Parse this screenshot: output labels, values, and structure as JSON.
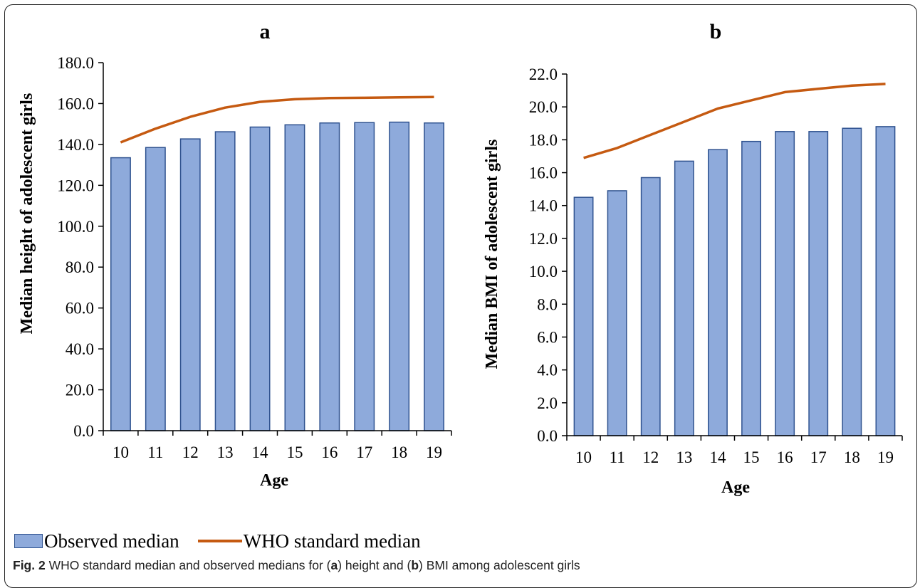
{
  "legend": {
    "observed_label": "Observed median",
    "who_label": "WHO standard median",
    "observed_color": "#8eaadb",
    "observed_edge": "#2f528f",
    "who_color": "#c55a11"
  },
  "caption": {
    "fig_label": "Fig. 2",
    "text1": " WHO standard median and observed medians for (",
    "a": "a",
    "text2": ") height and (",
    "b": "b",
    "text3": ") BMI among adolescent girls"
  },
  "chart_data": [
    {
      "type": "bar",
      "title": "a",
      "xlabel": "Age",
      "ylabel": "Median height of adolescent girls",
      "categories": [
        "10",
        "11",
        "12",
        "13",
        "14",
        "15",
        "16",
        "17",
        "18",
        "19"
      ],
      "ylim": [
        0,
        180
      ],
      "yticks": [
        "0.0",
        "20.0",
        "40.0",
        "60.0",
        "80.0",
        "100.0",
        "120.0",
        "140.0",
        "160.0",
        "180.0"
      ],
      "series": [
        {
          "name": "Observed median",
          "kind": "bar",
          "values": [
            133.5,
            138.5,
            142.7,
            146.2,
            148.5,
            149.6,
            150.5,
            150.7,
            150.9,
            150.5
          ]
        },
        {
          "name": "WHO standard median",
          "kind": "line",
          "values": [
            141.0,
            147.7,
            153.5,
            158.0,
            160.8,
            162.1,
            162.7,
            162.8,
            163.0,
            163.2
          ]
        }
      ]
    },
    {
      "type": "bar",
      "title": "b",
      "xlabel": "Age",
      "ylabel": "Median BMI of adolescent girls",
      "categories": [
        "10",
        "11",
        "12",
        "13",
        "14",
        "15",
        "16",
        "17",
        "18",
        "19"
      ],
      "ylim": [
        0,
        22
      ],
      "yticks": [
        "0.0",
        "2.0",
        "4.0",
        "6.0",
        "8.0",
        "10.0",
        "12.0",
        "14.0",
        "16.0",
        "18.0",
        "20.0",
        "22.0"
      ],
      "series": [
        {
          "name": "Observed median",
          "kind": "bar",
          "values": [
            14.5,
            14.9,
            15.7,
            16.7,
            17.4,
            17.9,
            18.5,
            18.5,
            18.7,
            18.8
          ]
        },
        {
          "name": "WHO standard median",
          "kind": "line",
          "values": [
            16.9,
            17.5,
            18.3,
            19.1,
            19.9,
            20.4,
            20.9,
            21.1,
            21.3,
            21.4
          ]
        }
      ]
    }
  ]
}
